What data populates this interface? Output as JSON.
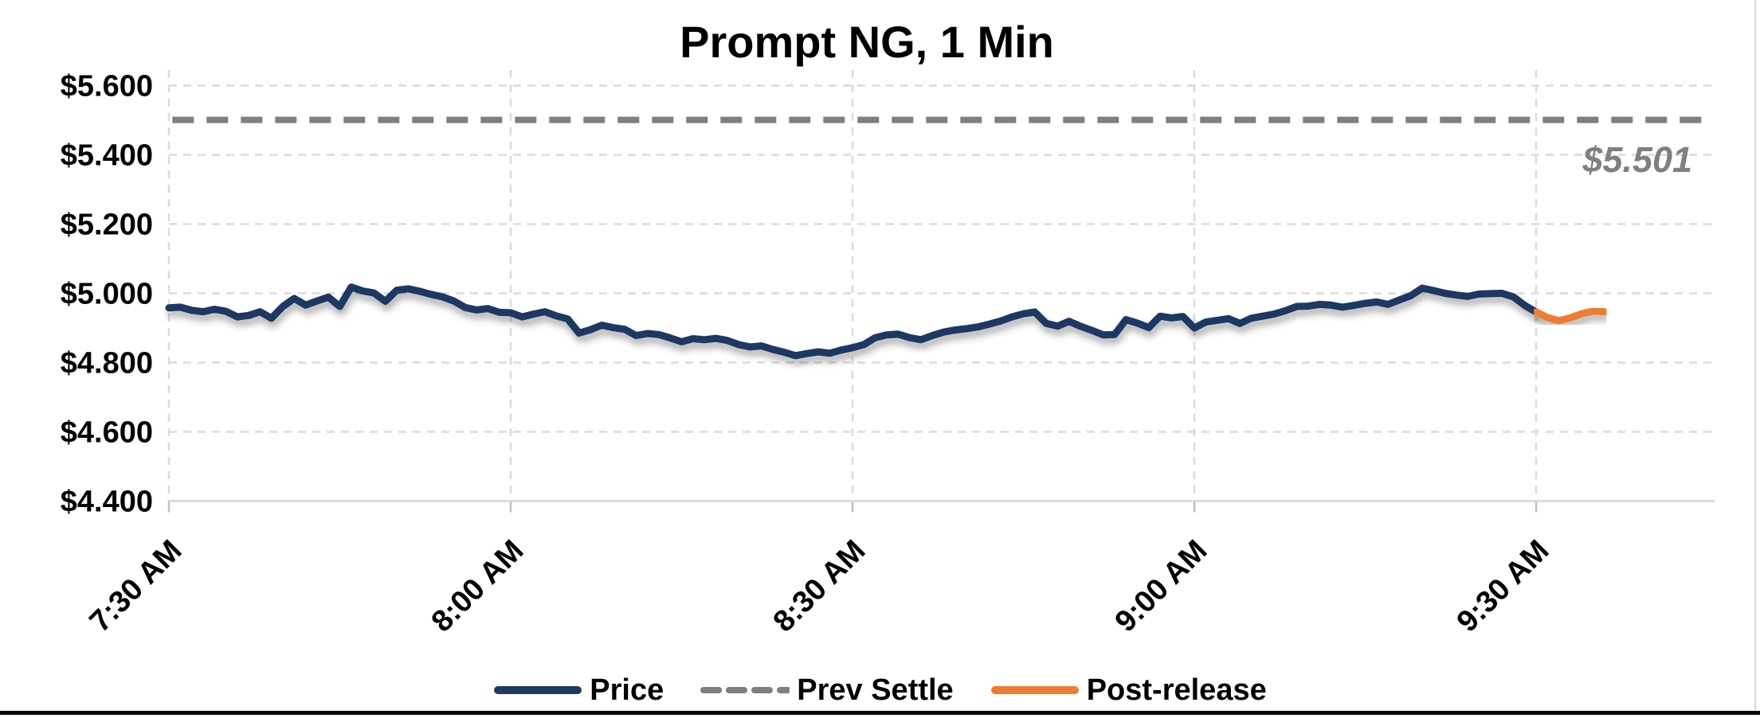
{
  "chart_data": {
    "type": "line",
    "title": "Prompt NG, 1 Min",
    "background": "#FFFFFF",
    "grid": true,
    "grid_color": "#DBDBDB",
    "axis_color": "#D6D6D6",
    "tick_color": "#BFBFBF",
    "right_border_color": "#D9D9D9",
    "bottom_edge_color": "#000000",
    "x_axis": {
      "unit": "time",
      "start_label": "7:30 AM",
      "minutes_per_gridline": 30,
      "ticks": [
        {
          "minute": 0,
          "label": "7:30 AM"
        },
        {
          "minute": 30,
          "label": "8:00 AM"
        },
        {
          "minute": 60,
          "label": "8:30 AM"
        },
        {
          "minute": 90,
          "label": "9:00 AM"
        },
        {
          "minute": 120,
          "label": "9:30 AM"
        }
      ]
    },
    "y_axis": {
      "min": 4.4,
      "max": 5.6,
      "ticks": [
        {
          "value": 5.6,
          "label": "$5.600"
        },
        {
          "value": 5.4,
          "label": "$5.400"
        },
        {
          "value": 5.2,
          "label": "$5.200"
        },
        {
          "value": 5.0,
          "label": "$5.000"
        },
        {
          "value": 4.8,
          "label": "$4.800"
        },
        {
          "value": 4.6,
          "label": "$4.600"
        },
        {
          "value": 4.4,
          "label": "$4.400"
        }
      ]
    },
    "series": [
      {
        "name": "Price",
        "color": "#1F3864",
        "width": 9,
        "style": "solid",
        "start_minute": 0,
        "step_minutes": 1,
        "values": [
          4.958,
          4.96,
          4.951,
          4.947,
          4.954,
          4.948,
          4.932,
          4.936,
          4.947,
          4.928,
          4.962,
          4.985,
          4.966,
          4.978,
          4.989,
          4.962,
          5.018,
          5.007,
          5.001,
          4.977,
          5.009,
          5.013,
          5.006,
          4.997,
          4.99,
          4.978,
          4.959,
          4.952,
          4.956,
          4.945,
          4.944,
          4.932,
          4.94,
          4.947,
          4.935,
          4.926,
          4.885,
          4.895,
          4.908,
          4.901,
          4.896,
          4.878,
          4.884,
          4.881,
          4.871,
          4.86,
          4.869,
          4.866,
          4.87,
          4.864,
          4.852,
          4.845,
          4.848,
          4.838,
          4.83,
          4.82,
          4.826,
          4.831,
          4.827,
          4.836,
          4.843,
          4.852,
          4.872,
          4.88,
          4.882,
          4.872,
          4.866,
          4.878,
          4.888,
          4.894,
          4.898,
          4.903,
          4.911,
          4.92,
          4.932,
          4.941,
          4.946,
          4.913,
          4.905,
          4.919,
          4.905,
          4.893,
          4.88,
          4.881,
          4.924,
          4.914,
          4.901,
          4.934,
          4.929,
          4.933,
          4.9,
          4.917,
          4.922,
          4.927,
          4.913,
          4.928,
          4.934,
          4.94,
          4.95,
          4.962,
          4.963,
          4.968,
          4.966,
          4.96,
          4.965,
          4.971,
          4.975,
          4.968,
          4.981,
          4.993,
          5.015,
          5.008,
          5.0,
          4.995,
          4.991,
          4.998,
          4.999,
          5.0,
          4.99,
          4.965,
          4.946
        ]
      },
      {
        "name": "Prev Settle",
        "color": "#7F7F7F",
        "width": 8,
        "style": "dashed",
        "dash": "27 16",
        "constant_value": 5.501,
        "start_minute": 0.3,
        "end_minute": 135.4
      },
      {
        "name": "Post-release",
        "color": "#ED7D31",
        "width": 9,
        "style": "solid",
        "start_minute": 120,
        "step_minutes": 1,
        "values": [
          4.946,
          4.93,
          4.921,
          4.929,
          4.941,
          4.949,
          4.947
        ]
      }
    ],
    "annotation": {
      "text": "$5.501",
      "color": "#808080"
    }
  }
}
